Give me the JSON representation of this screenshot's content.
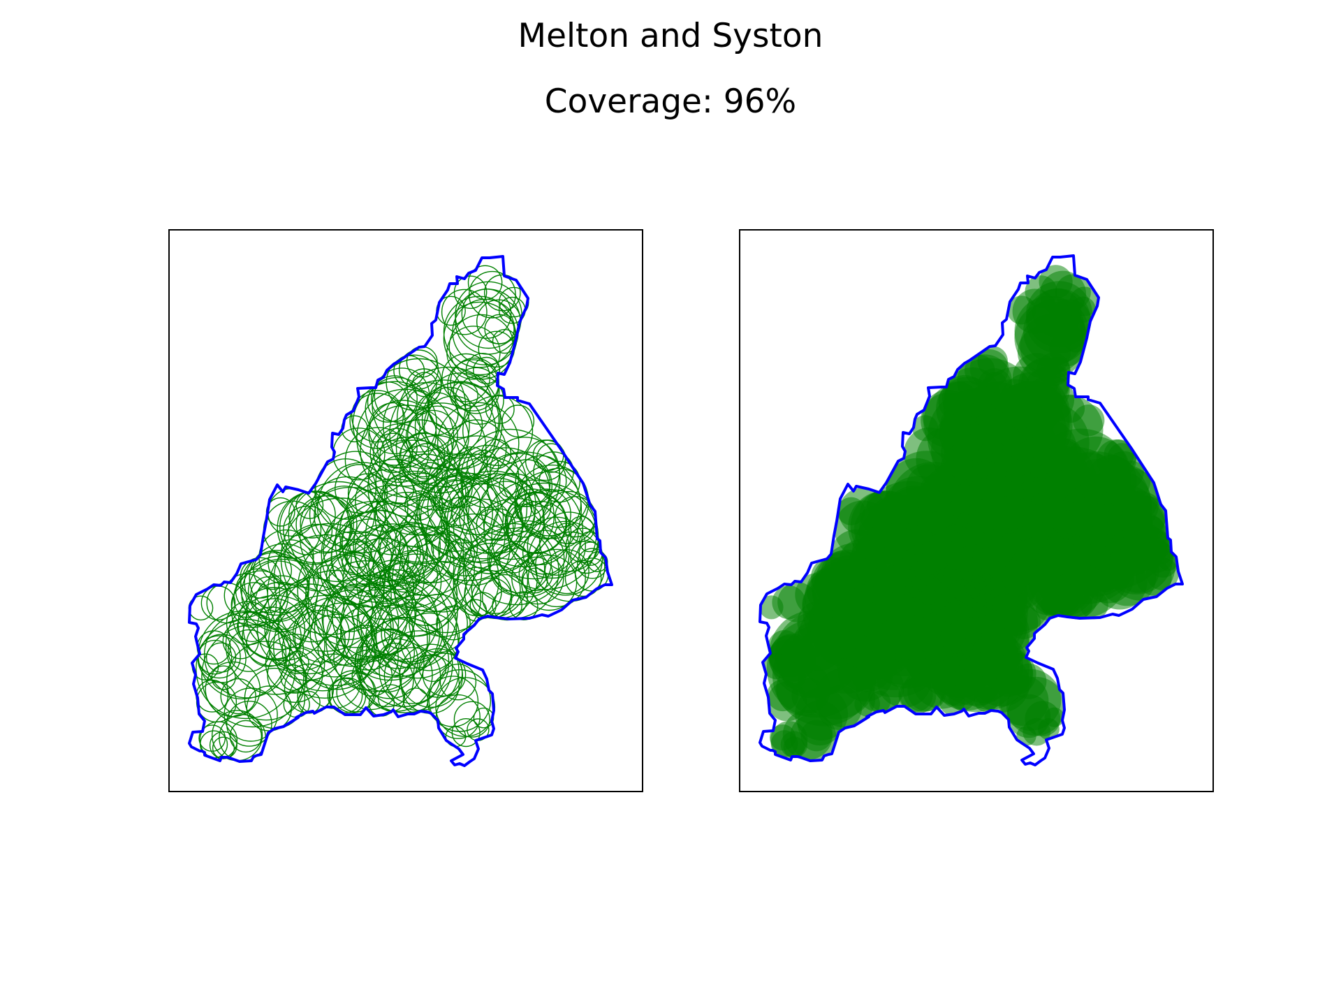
{
  "figure": {
    "title": "Melton and Syston",
    "subtitle": "Coverage: 96%"
  },
  "panels": [
    {
      "style": "outline-circles"
    },
    {
      "style": "filled-circles"
    }
  ],
  "colors": {
    "boundary": "#0000ff",
    "circle_stroke": "#008000",
    "circle_fill": "#008000",
    "frame": "#000000",
    "background": "#ffffff"
  }
}
